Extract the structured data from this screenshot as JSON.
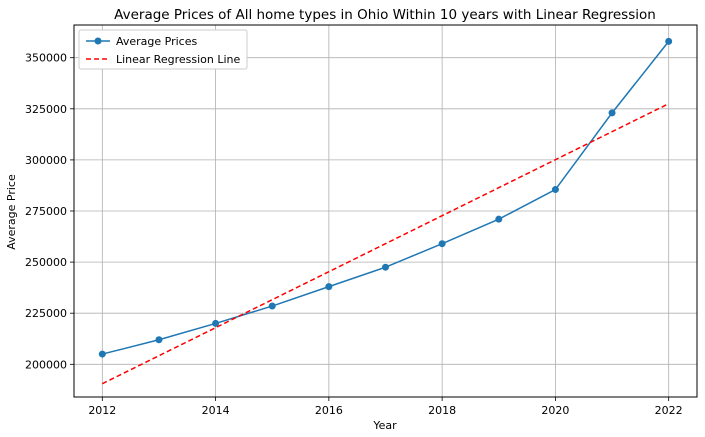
{
  "chart_data": {
    "type": "line",
    "title": "Average Prices of All home types in Ohio Within 10 years with Linear Regression",
    "xlabel": "Year",
    "ylabel": "Average Price",
    "xlim": [
      2011.5,
      2022.5
    ],
    "ylim": [
      184000,
      366000
    ],
    "x_ticks": [
      2012,
      2014,
      2016,
      2018,
      2020,
      2022
    ],
    "y_ticks": [
      200000,
      225000,
      250000,
      275000,
      300000,
      325000,
      350000
    ],
    "grid": true,
    "legend_position": "top-left",
    "series": [
      {
        "name": "Average Prices",
        "style": "solid-with-markers",
        "color": "#1f77b4",
        "x": [
          2012,
          2013,
          2014,
          2015,
          2016,
          2017,
          2018,
          2019,
          2020,
          2021,
          2022
        ],
        "values": [
          205000,
          212000,
          220000,
          228500,
          238000,
          247500,
          259000,
          271000,
          285500,
          323000,
          358000
        ]
      },
      {
        "name": "Linear Regression Line",
        "style": "dashed",
        "color": "#ff0000",
        "x": [
          2012,
          2022
        ],
        "values": [
          190500,
          327500
        ]
      }
    ]
  }
}
